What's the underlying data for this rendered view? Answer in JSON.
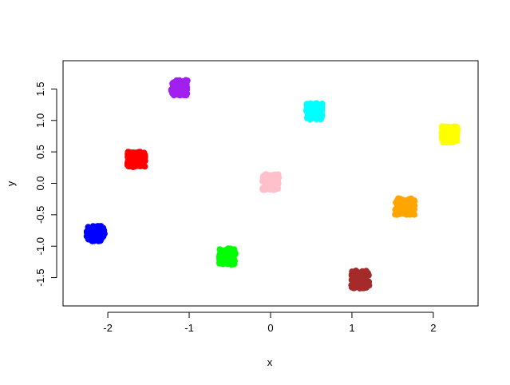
{
  "chart_data": {
    "type": "scatter",
    "title": "",
    "xlabel": "x",
    "ylabel": "y",
    "xlim": [
      -2.55,
      2.55
    ],
    "ylim": [
      -1.95,
      1.95
    ],
    "x_ticks": [
      -2,
      -1,
      0,
      1,
      2
    ],
    "y_ticks": [
      -1.5,
      -1.0,
      -0.5,
      0.0,
      0.5,
      1.0,
      1.5
    ],
    "x_tick_labels": [
      "-2",
      "-1",
      "0",
      "1",
      "2"
    ],
    "y_tick_labels": [
      "-1.5",
      "-1.0",
      "-0.5",
      "0.0",
      "0.5",
      "1.0",
      "1.5"
    ],
    "grid": false,
    "legend": "none",
    "clusters": [
      {
        "color": "#0000ff",
        "center": [
          -2.15,
          -0.8
        ],
        "spread": [
          0.11,
          0.12
        ]
      },
      {
        "color": "#ff0000",
        "center": [
          -1.65,
          0.38
        ],
        "spread": [
          0.11,
          0.12
        ]
      },
      {
        "color": "#a020f0",
        "center": [
          -1.12,
          1.52
        ],
        "spread": [
          0.1,
          0.12
        ]
      },
      {
        "color": "#00ff00",
        "center": [
          -0.53,
          -1.16
        ],
        "spread": [
          0.1,
          0.13
        ]
      },
      {
        "color": "#ffc0cb",
        "center": [
          0.0,
          0.02
        ],
        "spread": [
          0.1,
          0.13
        ]
      },
      {
        "color": "#00ffff",
        "center": [
          0.54,
          1.15
        ],
        "spread": [
          0.1,
          0.13
        ]
      },
      {
        "color": "#a52a2a",
        "center": [
          1.1,
          -1.53
        ],
        "spread": [
          0.11,
          0.14
        ]
      },
      {
        "color": "#ffa500",
        "center": [
          1.65,
          -0.37
        ],
        "spread": [
          0.12,
          0.13
        ]
      },
      {
        "color": "#ffff00",
        "center": [
          2.2,
          0.78
        ],
        "spread": [
          0.1,
          0.13
        ]
      }
    ],
    "points_per_cluster": 100
  }
}
